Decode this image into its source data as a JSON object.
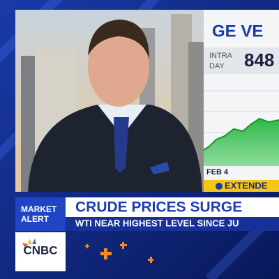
{
  "ticker": {
    "symbol": "GE VE",
    "label_line1": "INTRA",
    "label_line2": "DAY",
    "price": "848",
    "date": "FEB 4",
    "session": "EXTENDE"
  },
  "lower_third": {
    "tag_line1": "MARKET",
    "tag_line2": "ALERT",
    "headline": "CRUDE PRICES SURGE",
    "subline": "WTI NEAR HIGHEST LEVEL SINCE JU",
    "network": "CNBC"
  }
}
